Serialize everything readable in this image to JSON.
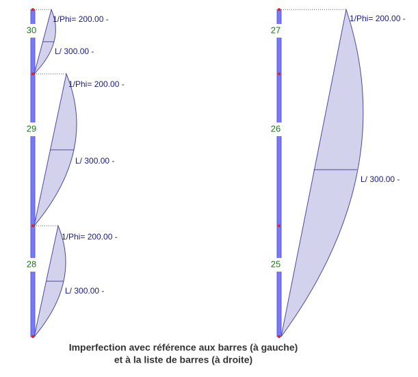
{
  "left": {
    "members": [
      "30",
      "29",
      "28"
    ],
    "imperfections": [
      {
        "sway": "1/Phi= 200.00 -",
        "bow": "L/ 300.00 -"
      },
      {
        "sway": "1/Phi= 200.00 -",
        "bow": "L/ 300.00 -"
      },
      {
        "sway": "1/Phi= 200.00 -",
        "bow": "L/ 300.00 -"
      }
    ]
  },
  "right": {
    "members": [
      "27",
      "26",
      "25"
    ],
    "imperfections": [
      {
        "sway": "1/Phi= 200.00 -",
        "bow": "L/ 300.00 -"
      }
    ]
  },
  "caption": [
    "Imperfection avec référence aux barres (à gauche)",
    "et à la liste de barres (à droite)"
  ]
}
